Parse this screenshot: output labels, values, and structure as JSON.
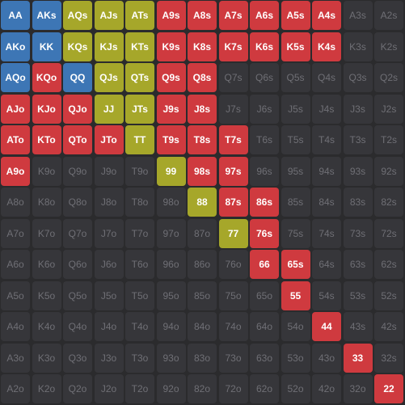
{
  "ranks": [
    "A",
    "K",
    "Q",
    "J",
    "T",
    "9",
    "8",
    "7",
    "6",
    "5",
    "4",
    "3",
    "2"
  ],
  "colors": {
    "blue": "#3d76b5",
    "olive": "#a6a72a",
    "red": "#cf3a3f",
    "empty_bg": "#36363a",
    "empty_text": "#6f6f75",
    "page_bg": "#2b2b2d"
  },
  "hands": {
    "blue": [
      "AA",
      "AKs",
      "AKo",
      "KK",
      "AQo",
      "QQ"
    ],
    "olive": [
      "AQs",
      "AJs",
      "ATs",
      "KQs",
      "KJs",
      "KTs",
      "QJs",
      "QTs",
      "JJ",
      "JTs",
      "TT",
      "99",
      "88",
      "77"
    ],
    "red": [
      "A9s",
      "A8s",
      "A7s",
      "A6s",
      "A5s",
      "A4s",
      "K9s",
      "K8s",
      "K7s",
      "K6s",
      "K5s",
      "K4s",
      "KQo",
      "Q9s",
      "Q8s",
      "AJo",
      "KJo",
      "QJo",
      "J9s",
      "J8s",
      "ATo",
      "KTo",
      "QTo",
      "JTo",
      "T9s",
      "T8s",
      "T7s",
      "A9o",
      "98s",
      "97s",
      "87s",
      "86s",
      "76s",
      "66",
      "65s",
      "55",
      "44",
      "33",
      "22"
    ]
  },
  "cells": [
    "AA",
    "AKs",
    "AQs",
    "AJs",
    "ATs",
    "A9s",
    "A8s",
    "A7s",
    "A6s",
    "A5s",
    "A4s",
    "A3s",
    "A2s",
    "AKo",
    "KK",
    "KQs",
    "KJs",
    "KTs",
    "K9s",
    "K8s",
    "K7s",
    "K6s",
    "K5s",
    "K4s",
    "K3s",
    "K2s",
    "AQo",
    "KQo",
    "QQ",
    "QJs",
    "QTs",
    "Q9s",
    "Q8s",
    "Q7s",
    "Q6s",
    "Q5s",
    "Q4s",
    "Q3s",
    "Q2s",
    "AJo",
    "KJo",
    "QJo",
    "JJ",
    "JTs",
    "J9s",
    "J8s",
    "J7s",
    "J6s",
    "J5s",
    "J4s",
    "J3s",
    "J2s",
    "ATo",
    "KTo",
    "QTo",
    "JTo",
    "TT",
    "T9s",
    "T8s",
    "T7s",
    "T6s",
    "T5s",
    "T4s",
    "T3s",
    "T2s",
    "A9o",
    "K9o",
    "Q9o",
    "J9o",
    "T9o",
    "99",
    "98s",
    "97s",
    "96s",
    "95s",
    "94s",
    "93s",
    "92s",
    "A8o",
    "K8o",
    "Q8o",
    "J8o",
    "T8o",
    "98o",
    "88",
    "87s",
    "86s",
    "85s",
    "84s",
    "83s",
    "82s",
    "A7o",
    "K7o",
    "Q7o",
    "J7o",
    "T7o",
    "97o",
    "87o",
    "77",
    "76s",
    "75s",
    "74s",
    "73s",
    "72s",
    "A6o",
    "K6o",
    "Q6o",
    "J6o",
    "T6o",
    "96o",
    "86o",
    "76o",
    "66",
    "65s",
    "64s",
    "63s",
    "62s",
    "A5o",
    "K5o",
    "Q5o",
    "J5o",
    "T5o",
    "95o",
    "85o",
    "75o",
    "65o",
    "55",
    "54s",
    "53s",
    "52s",
    "A4o",
    "K4o",
    "Q4o",
    "J4o",
    "T4o",
    "94o",
    "84o",
    "74o",
    "64o",
    "54o",
    "44",
    "43s",
    "42s",
    "A3o",
    "K3o",
    "Q3o",
    "J3o",
    "T3o",
    "93o",
    "83o",
    "73o",
    "63o",
    "53o",
    "43o",
    "33",
    "32s",
    "A2o",
    "K2o",
    "Q2o",
    "J2o",
    "T2o",
    "92o",
    "82o",
    "72o",
    "62o",
    "52o",
    "42o",
    "32o",
    "22"
  ]
}
